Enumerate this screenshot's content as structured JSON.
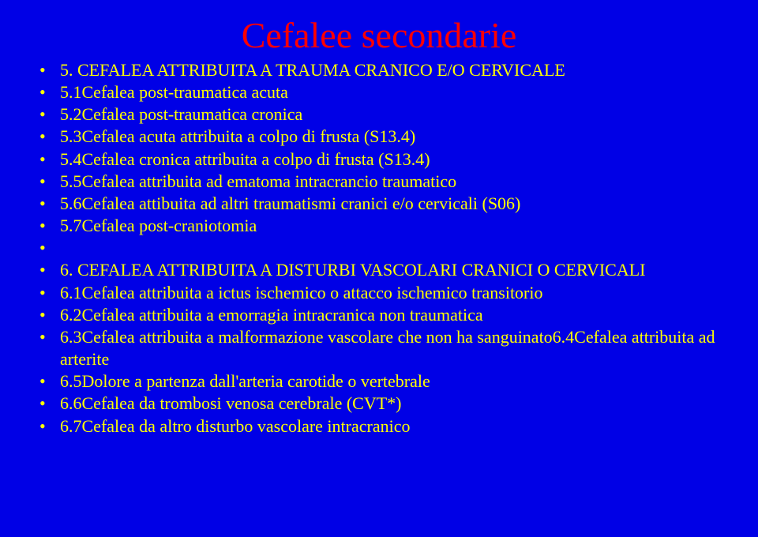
{
  "colors": {
    "background": "#0000e6",
    "title": "#ff0000",
    "body_text": "#ffff00",
    "bullet": "#ffff00"
  },
  "title": "Cefalee secondarie",
  "title_fontsize": 46,
  "body_fontsize": 22,
  "body_lineheight": 1.28,
  "lines": [
    "5. CEFALEA ATTRIBUITA A TRAUMA CRANICO E/O CERVICALE",
    "5.1Cefalea post-traumatica acuta",
    "5.2Cefalea post-traumatica cronica",
    "5.3Cefalea acuta attribuita a colpo di frusta (S13.4)",
    "5.4Cefalea cronica attribuita a colpo di frusta (S13.4)",
    "5.5Cefalea attribuita ad ematoma intracrancio traumatico",
    "5.6Cefalea attibuita ad altri traumatismi cranici e/o cervicali (S06)",
    "5.7Cefalea post-craniotomia",
    "",
    "6. CEFALEA ATTRIBUITA A DISTURBI VASCOLARI CRANICI O CERVICALI",
    "6.1Cefalea attribuita a ictus ischemico o attacco ischemico transitorio",
    "6.2Cefalea attribuita a emorragia intracranica non traumatica",
    "6.3Cefalea attribuita a malformazione vascolare che non ha sanguinato6.4Cefalea attribuita ad arterite",
    "6.5Dolore a partenza dall'arteria carotide o vertebrale",
    "6.6Cefalea da trombosi venosa cerebrale (CVT*)",
    "6.7Cefalea da altro disturbo vascolare intracranico"
  ]
}
